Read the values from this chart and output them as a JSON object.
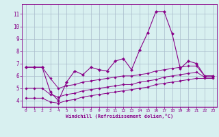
{
  "xlabel": "Windchill (Refroidissement éolien,°C)",
  "bg_color": "#d8f0f0",
  "line_color": "#880088",
  "grid_color": "#aabbcc",
  "x_data": [
    0,
    1,
    2,
    3,
    4,
    5,
    6,
    7,
    8,
    9,
    10,
    11,
    12,
    13,
    14,
    15,
    16,
    17,
    18,
    19,
    20,
    21,
    22,
    23
  ],
  "main_line": [
    6.7,
    6.7,
    6.7,
    4.7,
    4.0,
    5.5,
    6.4,
    6.1,
    6.7,
    6.5,
    6.4,
    7.2,
    7.4,
    6.5,
    8.1,
    9.5,
    11.2,
    11.2,
    9.4,
    6.6,
    7.2,
    7.0,
    6.0,
    6.0
  ],
  "line2": [
    6.7,
    6.7,
    6.7,
    5.8,
    5.0,
    5.2,
    5.3,
    5.5,
    5.6,
    5.7,
    5.8,
    5.9,
    6.0,
    6.0,
    6.1,
    6.2,
    6.4,
    6.5,
    6.6,
    6.7,
    6.8,
    6.8,
    6.0,
    6.0
  ],
  "line3": [
    5.0,
    5.0,
    5.0,
    4.5,
    4.3,
    4.5,
    4.6,
    4.8,
    4.9,
    5.0,
    5.1,
    5.2,
    5.3,
    5.3,
    5.5,
    5.6,
    5.7,
    5.9,
    6.0,
    6.1,
    6.2,
    6.3,
    5.9,
    5.9
  ],
  "line4": [
    4.2,
    4.2,
    4.2,
    3.9,
    3.8,
    4.0,
    4.1,
    4.3,
    4.4,
    4.5,
    4.6,
    4.7,
    4.8,
    4.9,
    5.0,
    5.1,
    5.3,
    5.4,
    5.5,
    5.6,
    5.7,
    5.8,
    5.8,
    5.8
  ],
  "ylim": [
    3.5,
    11.8
  ],
  "xlim": [
    -0.5,
    23.5
  ],
  "yticks": [
    4,
    5,
    6,
    7,
    8,
    9,
    10,
    11
  ],
  "xticks": [
    0,
    1,
    2,
    3,
    4,
    5,
    6,
    7,
    8,
    9,
    10,
    11,
    12,
    13,
    14,
    15,
    16,
    17,
    18,
    19,
    20,
    21,
    22,
    23
  ]
}
